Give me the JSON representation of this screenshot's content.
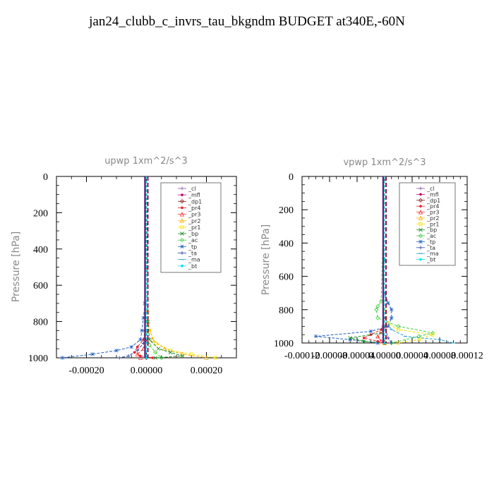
{
  "title": "jan24_clubb_c_invrs_tau_bkgndm  BUDGET at340E,-60N",
  "legend": [
    {
      "name": "_cl",
      "color": "#8a4fa0",
      "marker": "plus"
    },
    {
      "name": "_mfl",
      "color": "#c0006a",
      "marker": "dot"
    },
    {
      "name": "_dp1",
      "color": "#8b1a1a",
      "marker": "diamond"
    },
    {
      "name": "_pr4",
      "color": "#e0202a",
      "marker": "dot"
    },
    {
      "name": "_pr3",
      "color": "#ff3030",
      "marker": "triangle"
    },
    {
      "name": "_pr2",
      "color": "#ffb000",
      "marker": "triangle"
    },
    {
      "name": "_pr1",
      "color": "#f5e000",
      "marker": "square"
    },
    {
      "name": "_bp",
      "color": "#1a8a1a",
      "marker": "cross"
    },
    {
      "name": "_ac",
      "color": "#40d040",
      "marker": "diamond"
    },
    {
      "name": "_tp",
      "color": "#2060c0",
      "marker": "star"
    },
    {
      "name": "_ta",
      "color": "#2040a0",
      "marker": "plus"
    },
    {
      "name": "_ma",
      "color": "#20a0d0",
      "marker": "dash"
    },
    {
      "name": "_bt",
      "color": "#00e0f0",
      "marker": "dot"
    }
  ],
  "chart_data": [
    {
      "type": "line",
      "title": "upwp   1xm^2/s^3",
      "ylabel": "Pressure [hPa]",
      "ylim": [
        1000,
        0
      ],
      "xlim": [
        -0.0003,
        0.0003
      ],
      "yticks": [
        0,
        200,
        400,
        600,
        800,
        1000
      ],
      "xticks": [
        -0.0002,
        0,
        0.0002
      ],
      "xtick_labels": [
        "-0.00020",
        "0.00000",
        "0.00020"
      ],
      "series": [
        {
          "name": "_tp",
          "y": [
            0,
            700,
            780,
            850,
            900,
            940,
            960,
            980,
            1000
          ],
          "x": [
            0,
            -5e-06,
            -1e-05,
            -1.5e-05,
            -2e-05,
            -5e-05,
            -0.0001,
            -0.00018,
            -0.00028
          ]
        },
        {
          "name": "_ta",
          "y": [
            0,
            750,
            850,
            920,
            960,
            990,
            1000
          ],
          "x": [
            0,
            0,
            -5e-06,
            -1e-05,
            -3e-05,
            -6e-05,
            -9e-05
          ]
        },
        {
          "name": "_pr1",
          "y": [
            0,
            750,
            850,
            920,
            960,
            980,
            1000
          ],
          "x": [
            0,
            5e-06,
            1e-05,
            3e-05,
            8e-05,
            0.00015,
            0.00023
          ]
        },
        {
          "name": "_pr2",
          "y": [
            0,
            800,
            900,
            950,
            980,
            1000
          ],
          "x": [
            0,
            5e-06,
            2e-05,
            6e-05,
            0.00012,
            0.0002
          ]
        },
        {
          "name": "_bp",
          "y": [
            0,
            800,
            900,
            950,
            970,
            990,
            1000
          ],
          "x": [
            0,
            5e-06,
            1e-05,
            4e-05,
            8e-05,
            0.00012,
            3e-05
          ]
        },
        {
          "name": "_ac",
          "y": [
            0,
            850,
            930,
            970,
            1000
          ],
          "x": [
            0,
            0,
            1e-05,
            3e-05,
            5e-05
          ]
        },
        {
          "name": "_pr4",
          "y": [
            0,
            850,
            900,
            940,
            970,
            990,
            1000
          ],
          "x": [
            0,
            -5e-06,
            -1e-05,
            -3e-05,
            -4e-05,
            -2e-05,
            2e-05
          ]
        },
        {
          "name": "_pr3",
          "y": [
            0,
            900,
            950,
            980,
            1000
          ],
          "x": [
            0,
            0,
            -1e-05,
            -3e-05,
            -2e-05
          ]
        },
        {
          "name": "_cl",
          "y": [
            0,
            500,
            900,
            1000
          ],
          "x": [
            0,
            0,
            0,
            0
          ]
        },
        {
          "name": "_mfl",
          "y": [
            0,
            500,
            900,
            1000
          ],
          "x": [
            0,
            0,
            0,
            0
          ]
        },
        {
          "name": "_dp1",
          "y": [
            0,
            500,
            1000
          ],
          "x": [
            0,
            0,
            0
          ]
        },
        {
          "name": "_ma",
          "y": [
            0,
            500,
            1000
          ],
          "x": [
            0,
            0,
            0
          ]
        },
        {
          "name": "_bt",
          "y": [
            0,
            500,
            1000
          ],
          "x": [
            0,
            0,
            0
          ]
        }
      ]
    },
    {
      "type": "line",
      "title": "vpwp   1xm^2/s^3",
      "ylabel": "Pressure [hPa]",
      "ylim": [
        1000,
        0
      ],
      "xlim": [
        -0.00012,
        0.00012
      ],
      "yticks": [
        0,
        200,
        400,
        600,
        800,
        1000
      ],
      "xticks": [
        -0.00012,
        -8e-05,
        -4e-05,
        0,
        4e-05,
        8e-05,
        0.00012
      ],
      "xtick_labels": [
        "-0.00012",
        "-0.00008",
        "-0.00004",
        "0.00000",
        "0.00004",
        "0.00008",
        "0.00012"
      ],
      "series": [
        {
          "name": "_tp",
          "y": [
            0,
            700,
            760,
            800,
            850,
            900,
            930,
            960,
            980,
            1000
          ],
          "x": [
            0,
            0,
            5e-06,
            1e-05,
            1e-05,
            5e-06,
            -2e-05,
            -0.0001,
            -5e-05,
            -1e-05
          ]
        },
        {
          "name": "_ac",
          "y": [
            0,
            750,
            780,
            800,
            850,
            900,
            940,
            960,
            1000
          ],
          "x": [
            0,
            -5e-06,
            -1e-05,
            -1.2e-05,
            -1e-05,
            2e-05,
            7e-05,
            5e-05,
            1e-05
          ]
        },
        {
          "name": "_pr1",
          "y": [
            0,
            800,
            880,
            920,
            950,
            980,
            1000
          ],
          "x": [
            0,
            0,
            5e-06,
            2e-05,
            7e-05,
            5e-05,
            2e-05
          ]
        },
        {
          "name": "_ma",
          "y": [
            0,
            850,
            920,
            960,
            980,
            1000
          ],
          "x": [
            0,
            0,
            1e-05,
            3e-05,
            8e-05,
            0.0001
          ]
        },
        {
          "name": "_pr4",
          "y": [
            0,
            850,
            920,
            950,
            970,
            990,
            1000
          ],
          "x": [
            0,
            0,
            -5e-06,
            -2e-05,
            -3e-05,
            -1e-05,
            0
          ]
        },
        {
          "name": "_bp",
          "y": [
            0,
            900,
            940,
            970,
            990,
            1000
          ],
          "x": [
            0,
            0,
            -5e-06,
            -5e-05,
            -3e-05,
            0
          ]
        },
        {
          "name": "_pr3",
          "y": [
            0,
            900,
            960,
            990,
            1000
          ],
          "x": [
            0,
            0,
            -1e-05,
            -5e-06,
            0
          ]
        },
        {
          "name": "_ta",
          "y": [
            0,
            900,
            970,
            1000
          ],
          "x": [
            0,
            0,
            5e-06,
            1e-05
          ]
        },
        {
          "name": "_cl",
          "y": [
            0,
            500,
            1000
          ],
          "x": [
            0,
            0,
            0
          ]
        },
        {
          "name": "_mfl",
          "y": [
            0,
            500,
            1000
          ],
          "x": [
            0,
            0,
            0
          ]
        },
        {
          "name": "_dp1",
          "y": [
            0,
            500,
            1000
          ],
          "x": [
            0,
            0,
            0
          ]
        },
        {
          "name": "_pr2",
          "y": [
            0,
            500,
            1000
          ],
          "x": [
            0,
            0,
            0
          ]
        },
        {
          "name": "_bt",
          "y": [
            0,
            500,
            1000
          ],
          "x": [
            0,
            0,
            0
          ]
        }
      ]
    }
  ]
}
